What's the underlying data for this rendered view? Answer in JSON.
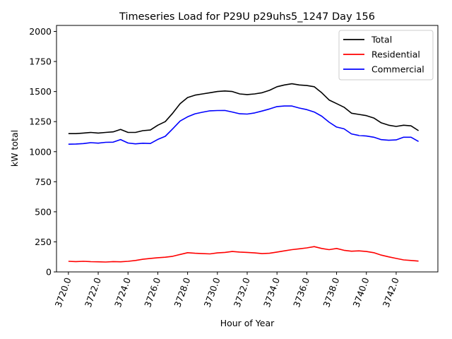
{
  "chart_data": {
    "type": "line",
    "title": "Timeseries Load for P29U p29uhs5_1247  Day 156",
    "xlabel": "Hour of Year",
    "ylabel": "kW total",
    "xlim": [
      3719.2,
      3744.8
    ],
    "ylim": [
      0,
      2050
    ],
    "xticks": [
      3720,
      3722,
      3724,
      3726,
      3728,
      3730,
      3732,
      3734,
      3736,
      3738,
      3740,
      3742
    ],
    "xtick_labels": [
      "3720.0",
      "3722.0",
      "3724.0",
      "3726.0",
      "3728.0",
      "3730.0",
      "3732.0",
      "3734.0",
      "3736.0",
      "3738.0",
      "3740.0",
      "3742.0"
    ],
    "yticks": [
      0,
      250,
      500,
      750,
      1000,
      1250,
      1500,
      1750,
      2000
    ],
    "ytick_labels": [
      "0",
      "250",
      "500",
      "750",
      "1000",
      "1250",
      "1500",
      "1750",
      "2000"
    ],
    "legend_position": "top-right",
    "x": [
      3720.0,
      3720.5,
      3721.0,
      3721.5,
      3722.0,
      3722.5,
      3723.0,
      3723.5,
      3724.0,
      3724.5,
      3725.0,
      3725.5,
      3726.0,
      3726.5,
      3727.0,
      3727.5,
      3728.0,
      3728.5,
      3729.0,
      3729.5,
      3730.0,
      3730.5,
      3731.0,
      3731.5,
      3732.0,
      3732.5,
      3733.0,
      3733.5,
      3734.0,
      3734.5,
      3735.0,
      3735.5,
      3736.0,
      3736.5,
      3737.0,
      3737.5,
      3738.0,
      3738.5,
      3739.0,
      3739.5,
      3740.0,
      3740.5,
      3741.0,
      3741.5,
      3742.0,
      3742.5,
      3743.0,
      3743.5
    ],
    "series": [
      {
        "name": "Total",
        "color": "#000000",
        "values": [
          1150,
          1150,
          1155,
          1160,
          1155,
          1160,
          1165,
          1185,
          1160,
          1160,
          1175,
          1180,
          1220,
          1250,
          1320,
          1400,
          1450,
          1470,
          1480,
          1490,
          1500,
          1505,
          1500,
          1480,
          1475,
          1480,
          1490,
          1510,
          1540,
          1555,
          1565,
          1555,
          1550,
          1540,
          1490,
          1430,
          1400,
          1370,
          1320,
          1310,
          1300,
          1280,
          1240,
          1220,
          1210,
          1220,
          1215,
          1175
        ]
      },
      {
        "name": "Residential",
        "color": "#ff0000",
        "values": [
          88,
          86,
          88,
          85,
          84,
          82,
          86,
          84,
          88,
          95,
          105,
          112,
          118,
          122,
          130,
          145,
          160,
          155,
          152,
          150,
          158,
          162,
          170,
          165,
          162,
          158,
          152,
          155,
          165,
          175,
          185,
          192,
          200,
          210,
          195,
          185,
          195,
          180,
          172,
          175,
          170,
          160,
          140,
          125,
          112,
          100,
          95,
          90
        ]
      },
      {
        "name": "Commercial",
        "color": "#0000ff",
        "values": [
          1062,
          1064,
          1067,
          1075,
          1071,
          1078,
          1079,
          1101,
          1072,
          1065,
          1070,
          1068,
          1102,
          1128,
          1190,
          1255,
          1290,
          1315,
          1328,
          1340,
          1342,
          1343,
          1330,
          1315,
          1313,
          1322,
          1338,
          1355,
          1375,
          1380,
          1380,
          1363,
          1350,
          1330,
          1295,
          1245,
          1205,
          1190,
          1148,
          1135,
          1130,
          1120,
          1100,
          1095,
          1098,
          1120,
          1120,
          1085
        ]
      }
    ]
  }
}
